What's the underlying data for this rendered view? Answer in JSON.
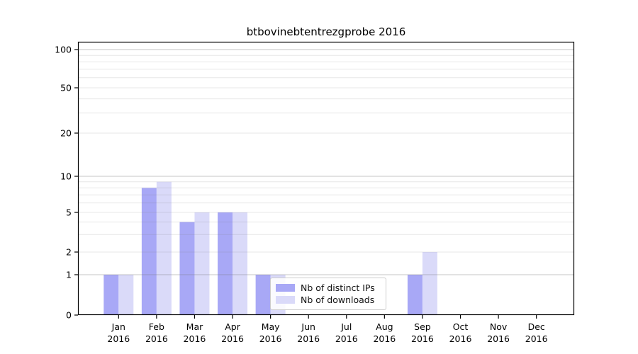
{
  "title": "btbovinebtentrezgprobe 2016",
  "chart_data": {
    "type": "bar",
    "title": "btbovinebtentrezgprobe 2016",
    "xlabel": "",
    "ylabel": "",
    "categories": [
      "Jan 2016",
      "Feb 2016",
      "Mar 2016",
      "Apr 2016",
      "May 2016",
      "Jun 2016",
      "Jul 2016",
      "Aug 2016",
      "Sep 2016",
      "Oct 2016",
      "Nov 2016",
      "Dec 2016"
    ],
    "series": [
      {
        "name": "Nb of distinct IPs",
        "color": "#a8a8f6",
        "values": [
          1,
          8,
          4,
          5,
          1,
          0,
          0,
          0,
          1,
          0,
          0,
          0
        ]
      },
      {
        "name": "Nb of downloads",
        "color": "#dadaf9",
        "values": [
          1,
          9,
          5,
          5,
          1,
          0,
          0,
          0,
          2,
          0,
          0,
          0
        ]
      }
    ],
    "yscale": "symlog",
    "ylim": [
      0,
      100
    ],
    "yticks": [
      0,
      1,
      2,
      5,
      10,
      20,
      50,
      100
    ],
    "major_gridlines": [
      1,
      10,
      100
    ],
    "minor_gridlines": [
      2,
      3,
      4,
      5,
      6,
      7,
      8,
      9,
      20,
      30,
      40,
      50,
      60,
      70,
      80,
      90
    ],
    "grid": true,
    "legend_position": "lower-center-inside",
    "axis_color": "#000000",
    "major_grid_color": "#c6c6c6",
    "minor_grid_color": "#e6e6e6"
  }
}
